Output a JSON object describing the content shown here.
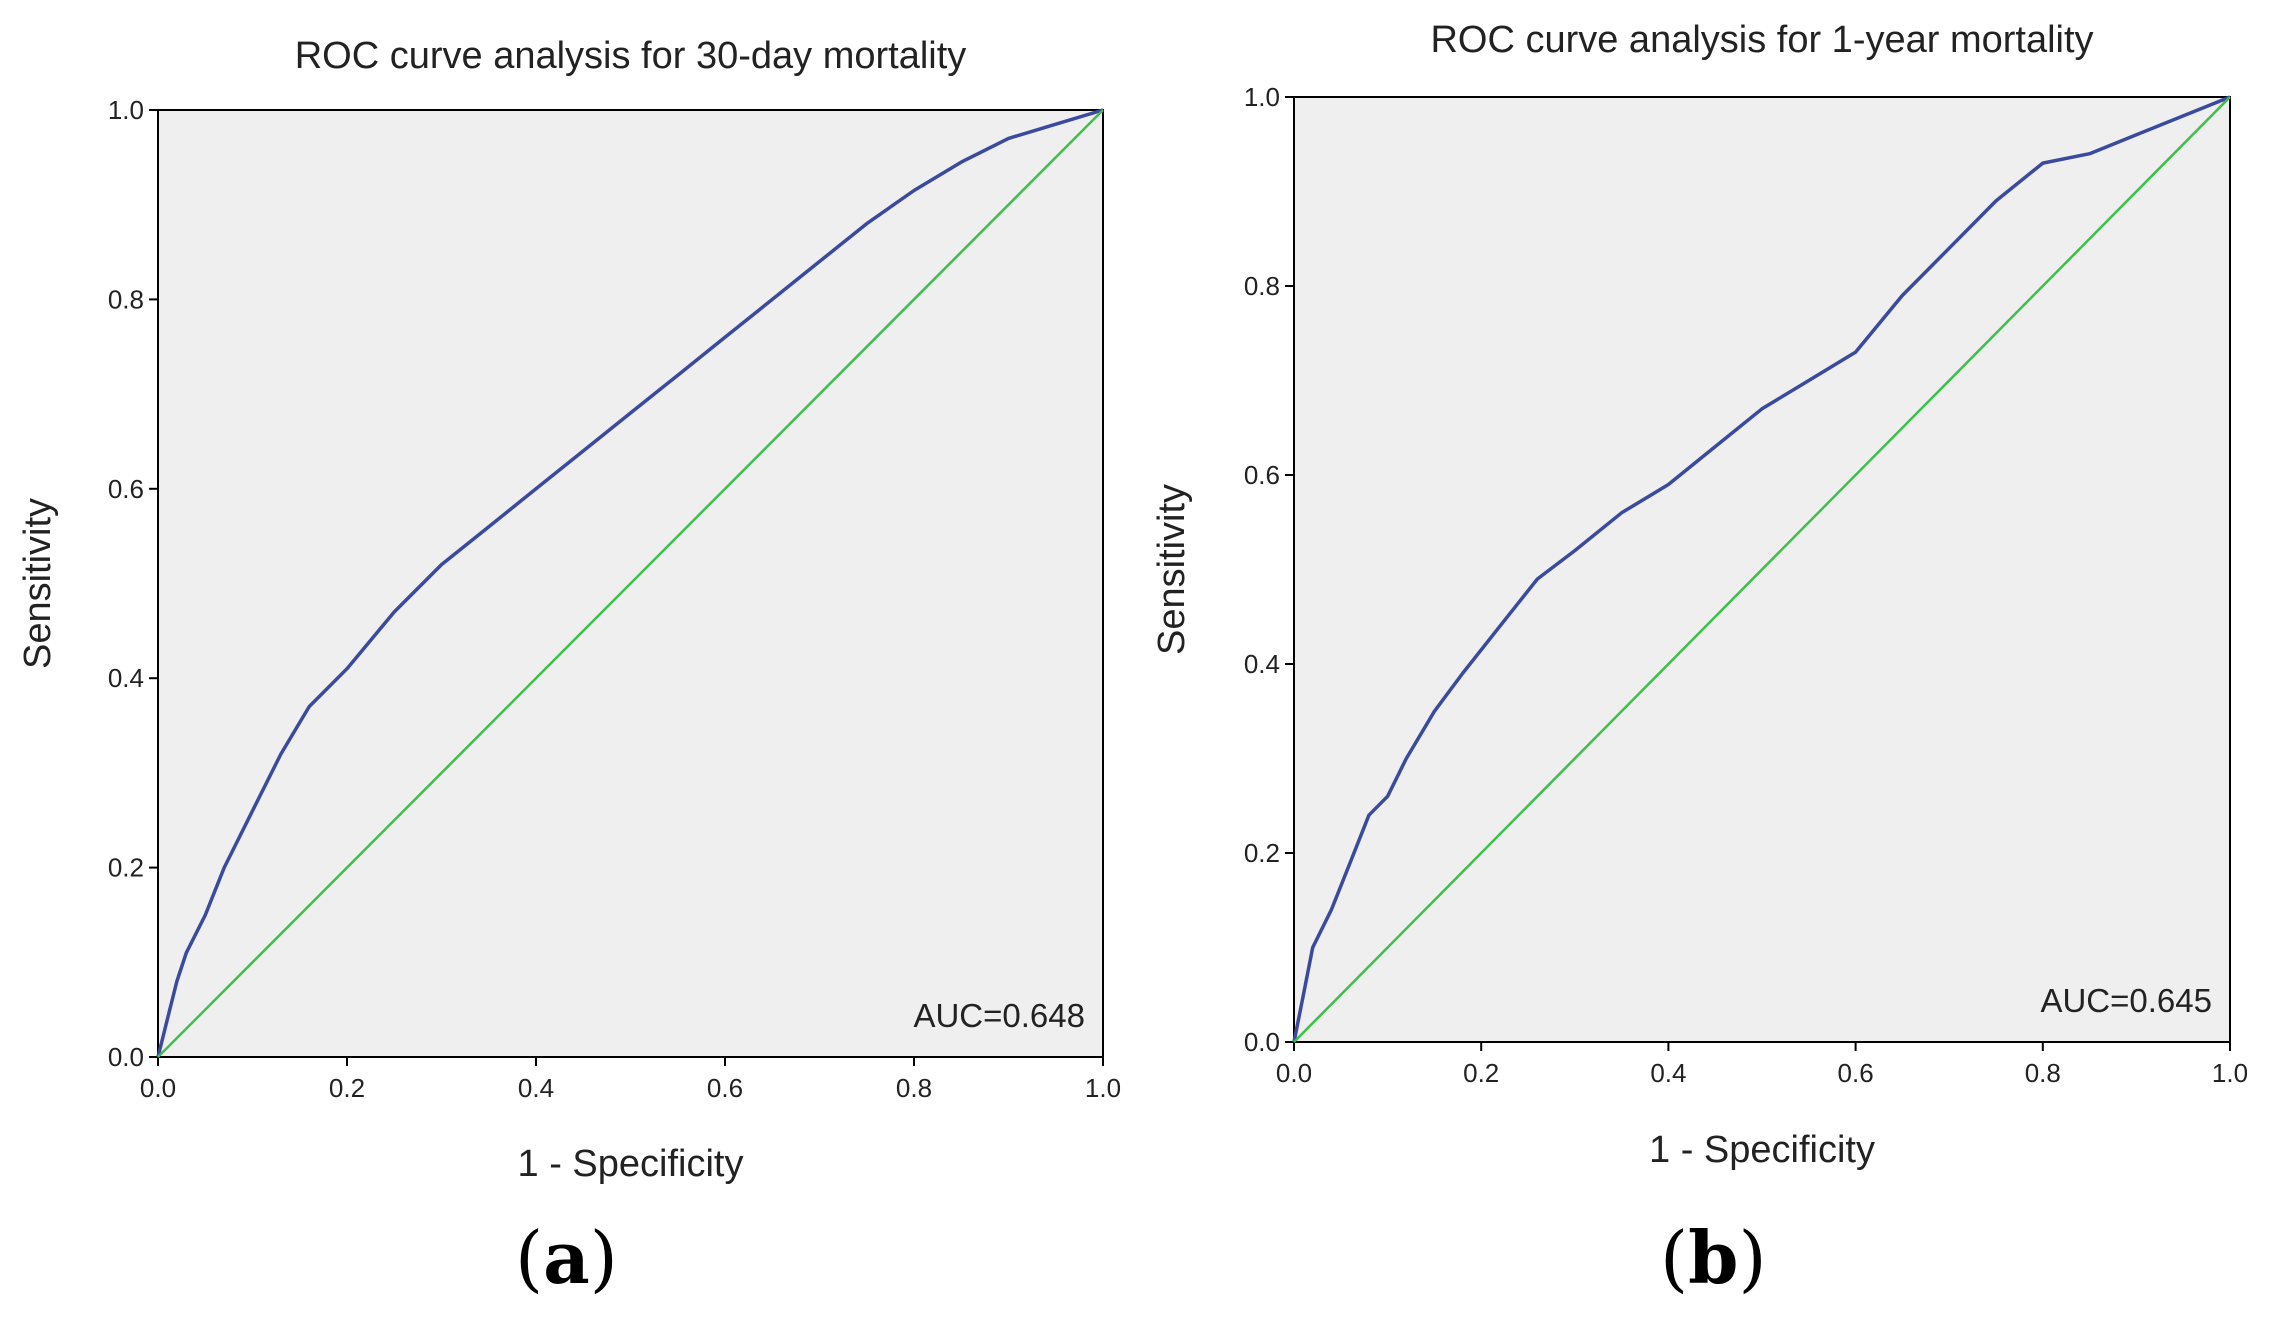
{
  "panels": [
    {
      "id": "a",
      "label_open": "(",
      "label_letter": "a",
      "label_close": ")"
    },
    {
      "id": "b",
      "label_open": "(",
      "label_letter": "b",
      "label_close": ")"
    }
  ],
  "colors": {
    "plot_background": "#efefef",
    "roc_curve": "#3a4a9e",
    "reference_line": "#3cc04a",
    "axis": "#000000"
  },
  "chart_data": [
    {
      "type": "line",
      "title": "ROC curve analysis for 30-day mortality",
      "xlabel": "1 - Specificity",
      "ylabel": "Sensitivity",
      "xlim": [
        0,
        1
      ],
      "ylim": [
        0,
        1
      ],
      "xticks": [
        "0.0",
        "0.2",
        "0.4",
        "0.6",
        "0.8",
        "1.0"
      ],
      "yticks": [
        "0.0",
        "0.2",
        "0.4",
        "0.6",
        "0.8",
        "1.0"
      ],
      "annotation": "AUC=0.648",
      "series": [
        {
          "role": "roc",
          "x": [
            0,
            0.01,
            0.02,
            0.03,
            0.05,
            0.07,
            0.1,
            0.13,
            0.16,
            0.2,
            0.25,
            0.3,
            0.35,
            0.4,
            0.45,
            0.5,
            0.55,
            0.6,
            0.65,
            0.7,
            0.75,
            0.8,
            0.85,
            0.9,
            0.95,
            1.0
          ],
          "y": [
            0,
            0.04,
            0.08,
            0.11,
            0.15,
            0.2,
            0.26,
            0.32,
            0.37,
            0.41,
            0.47,
            0.52,
            0.56,
            0.6,
            0.64,
            0.68,
            0.72,
            0.76,
            0.8,
            0.84,
            0.88,
            0.915,
            0.945,
            0.97,
            0.985,
            1.0
          ]
        },
        {
          "role": "reference",
          "x": [
            0,
            1
          ],
          "y": [
            0,
            1
          ]
        }
      ]
    },
    {
      "type": "line",
      "title": "ROC curve analysis for 1-year mortality",
      "xlabel": "1 - Specificity",
      "ylabel": "Sensitivity",
      "xlim": [
        0,
        1
      ],
      "ylim": [
        0,
        1
      ],
      "xticks": [
        "0.0",
        "0.2",
        "0.4",
        "0.6",
        "0.8",
        "1.0"
      ],
      "yticks": [
        "0.0",
        "0.2",
        "0.4",
        "0.6",
        "0.8",
        "1.0"
      ],
      "annotation": "AUC=0.645",
      "series": [
        {
          "role": "roc",
          "x": [
            0,
            0.01,
            0.02,
            0.04,
            0.06,
            0.08,
            0.1,
            0.12,
            0.15,
            0.18,
            0.22,
            0.26,
            0.3,
            0.35,
            0.4,
            0.45,
            0.5,
            0.55,
            0.6,
            0.65,
            0.7,
            0.75,
            0.8,
            0.85,
            0.9,
            0.95,
            1.0
          ],
          "y": [
            0,
            0.05,
            0.1,
            0.14,
            0.19,
            0.24,
            0.26,
            0.3,
            0.35,
            0.39,
            0.44,
            0.49,
            0.52,
            0.56,
            0.59,
            0.63,
            0.67,
            0.7,
            0.73,
            0.79,
            0.84,
            0.89,
            0.93,
            0.94,
            0.96,
            0.98,
            1.0
          ]
        },
        {
          "role": "reference",
          "x": [
            0,
            1
          ],
          "y": [
            0,
            1
          ]
        }
      ]
    }
  ]
}
